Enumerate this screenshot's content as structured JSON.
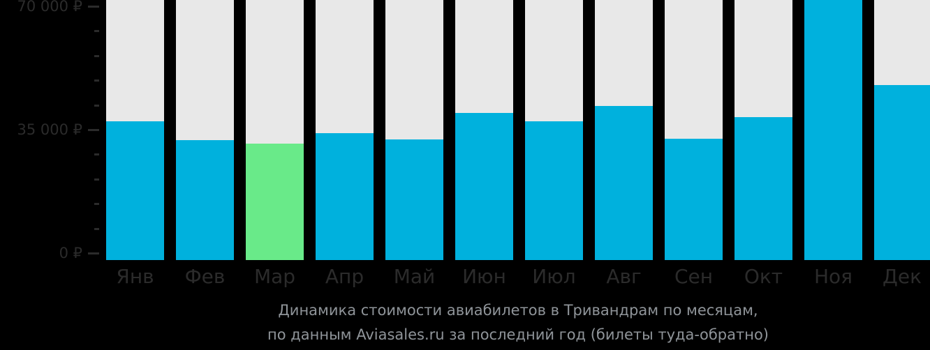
{
  "colors": {
    "background": "#000000",
    "axis_text": "#2b2b2b",
    "title_text": "#8f9499"
  },
  "chart_data": {
    "type": "bar",
    "title_line1": "Динамика стоимости авиабилетов в Тривандрам по месяцам,",
    "title_line2": "по данным Aviasales.ru за последний год (билеты туда-обратно)",
    "categories": [
      "Янв",
      "Фев",
      "Мар",
      "Апр",
      "Май",
      "Июн",
      "Июл",
      "Авг",
      "Сен",
      "Окт",
      "Ноя",
      "Дек"
    ],
    "values": [
      39400,
      34100,
      33100,
      36100,
      34300,
      41800,
      39500,
      43800,
      34400,
      40600,
      74000,
      49700
    ],
    "highlight_index": 2,
    "bar_clipped_at_top_index": 10,
    "ylim": [
      0,
      70000
    ],
    "minor_tick_step": 7000,
    "major_tick_step": 35000,
    "yticks": [
      {
        "value": 0,
        "label": "0 ₽"
      },
      {
        "value": 35000,
        "label": "35 000 ₽"
      },
      {
        "value": 70000,
        "label": "70 000 ₽"
      }
    ],
    "grid": false,
    "legend": "none",
    "bar_color": "#00b1dd",
    "highlight_color": "#69ea89",
    "column_bg_color": "#e8e8e8"
  }
}
